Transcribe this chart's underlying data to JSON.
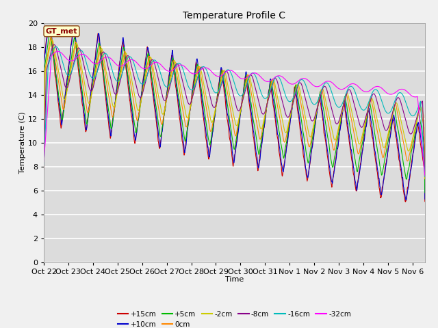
{
  "title": "Temperature Profile C",
  "xlabel": "Time",
  "ylabel": "Temperature (C)",
  "ylim": [
    0,
    20
  ],
  "background_color": "#f0f0f0",
  "plot_bg_color": "#dcdcdc",
  "grid_color": "white",
  "legend_label": "GT_met",
  "series": [
    {
      "label": "+15cm",
      "color": "#cc0000"
    },
    {
      "label": "+10cm",
      "color": "#0000cc"
    },
    {
      "label": "+5cm",
      "color": "#00bb00"
    },
    {
      "label": "0cm",
      "color": "#ff8800"
    },
    {
      "label": "-2cm",
      "color": "#cccc00"
    },
    {
      "label": "-8cm",
      "color": "#880088"
    },
    {
      "label": "-16cm",
      "color": "#00bbbb"
    },
    {
      "label": "-32cm",
      "color": "#ff00ff"
    }
  ],
  "tick_labels": [
    "Oct 22",
    "Oct 23",
    "Oct 24",
    "Oct 25",
    "Oct 26",
    "Oct 27",
    "Oct 28",
    "Oct 29",
    "Oct 30",
    "Oct 31",
    "Nov 1",
    "Nov 2",
    "Nov 3",
    "Nov 4",
    "Nov 5",
    "Nov 6"
  ],
  "n_points": 1500
}
